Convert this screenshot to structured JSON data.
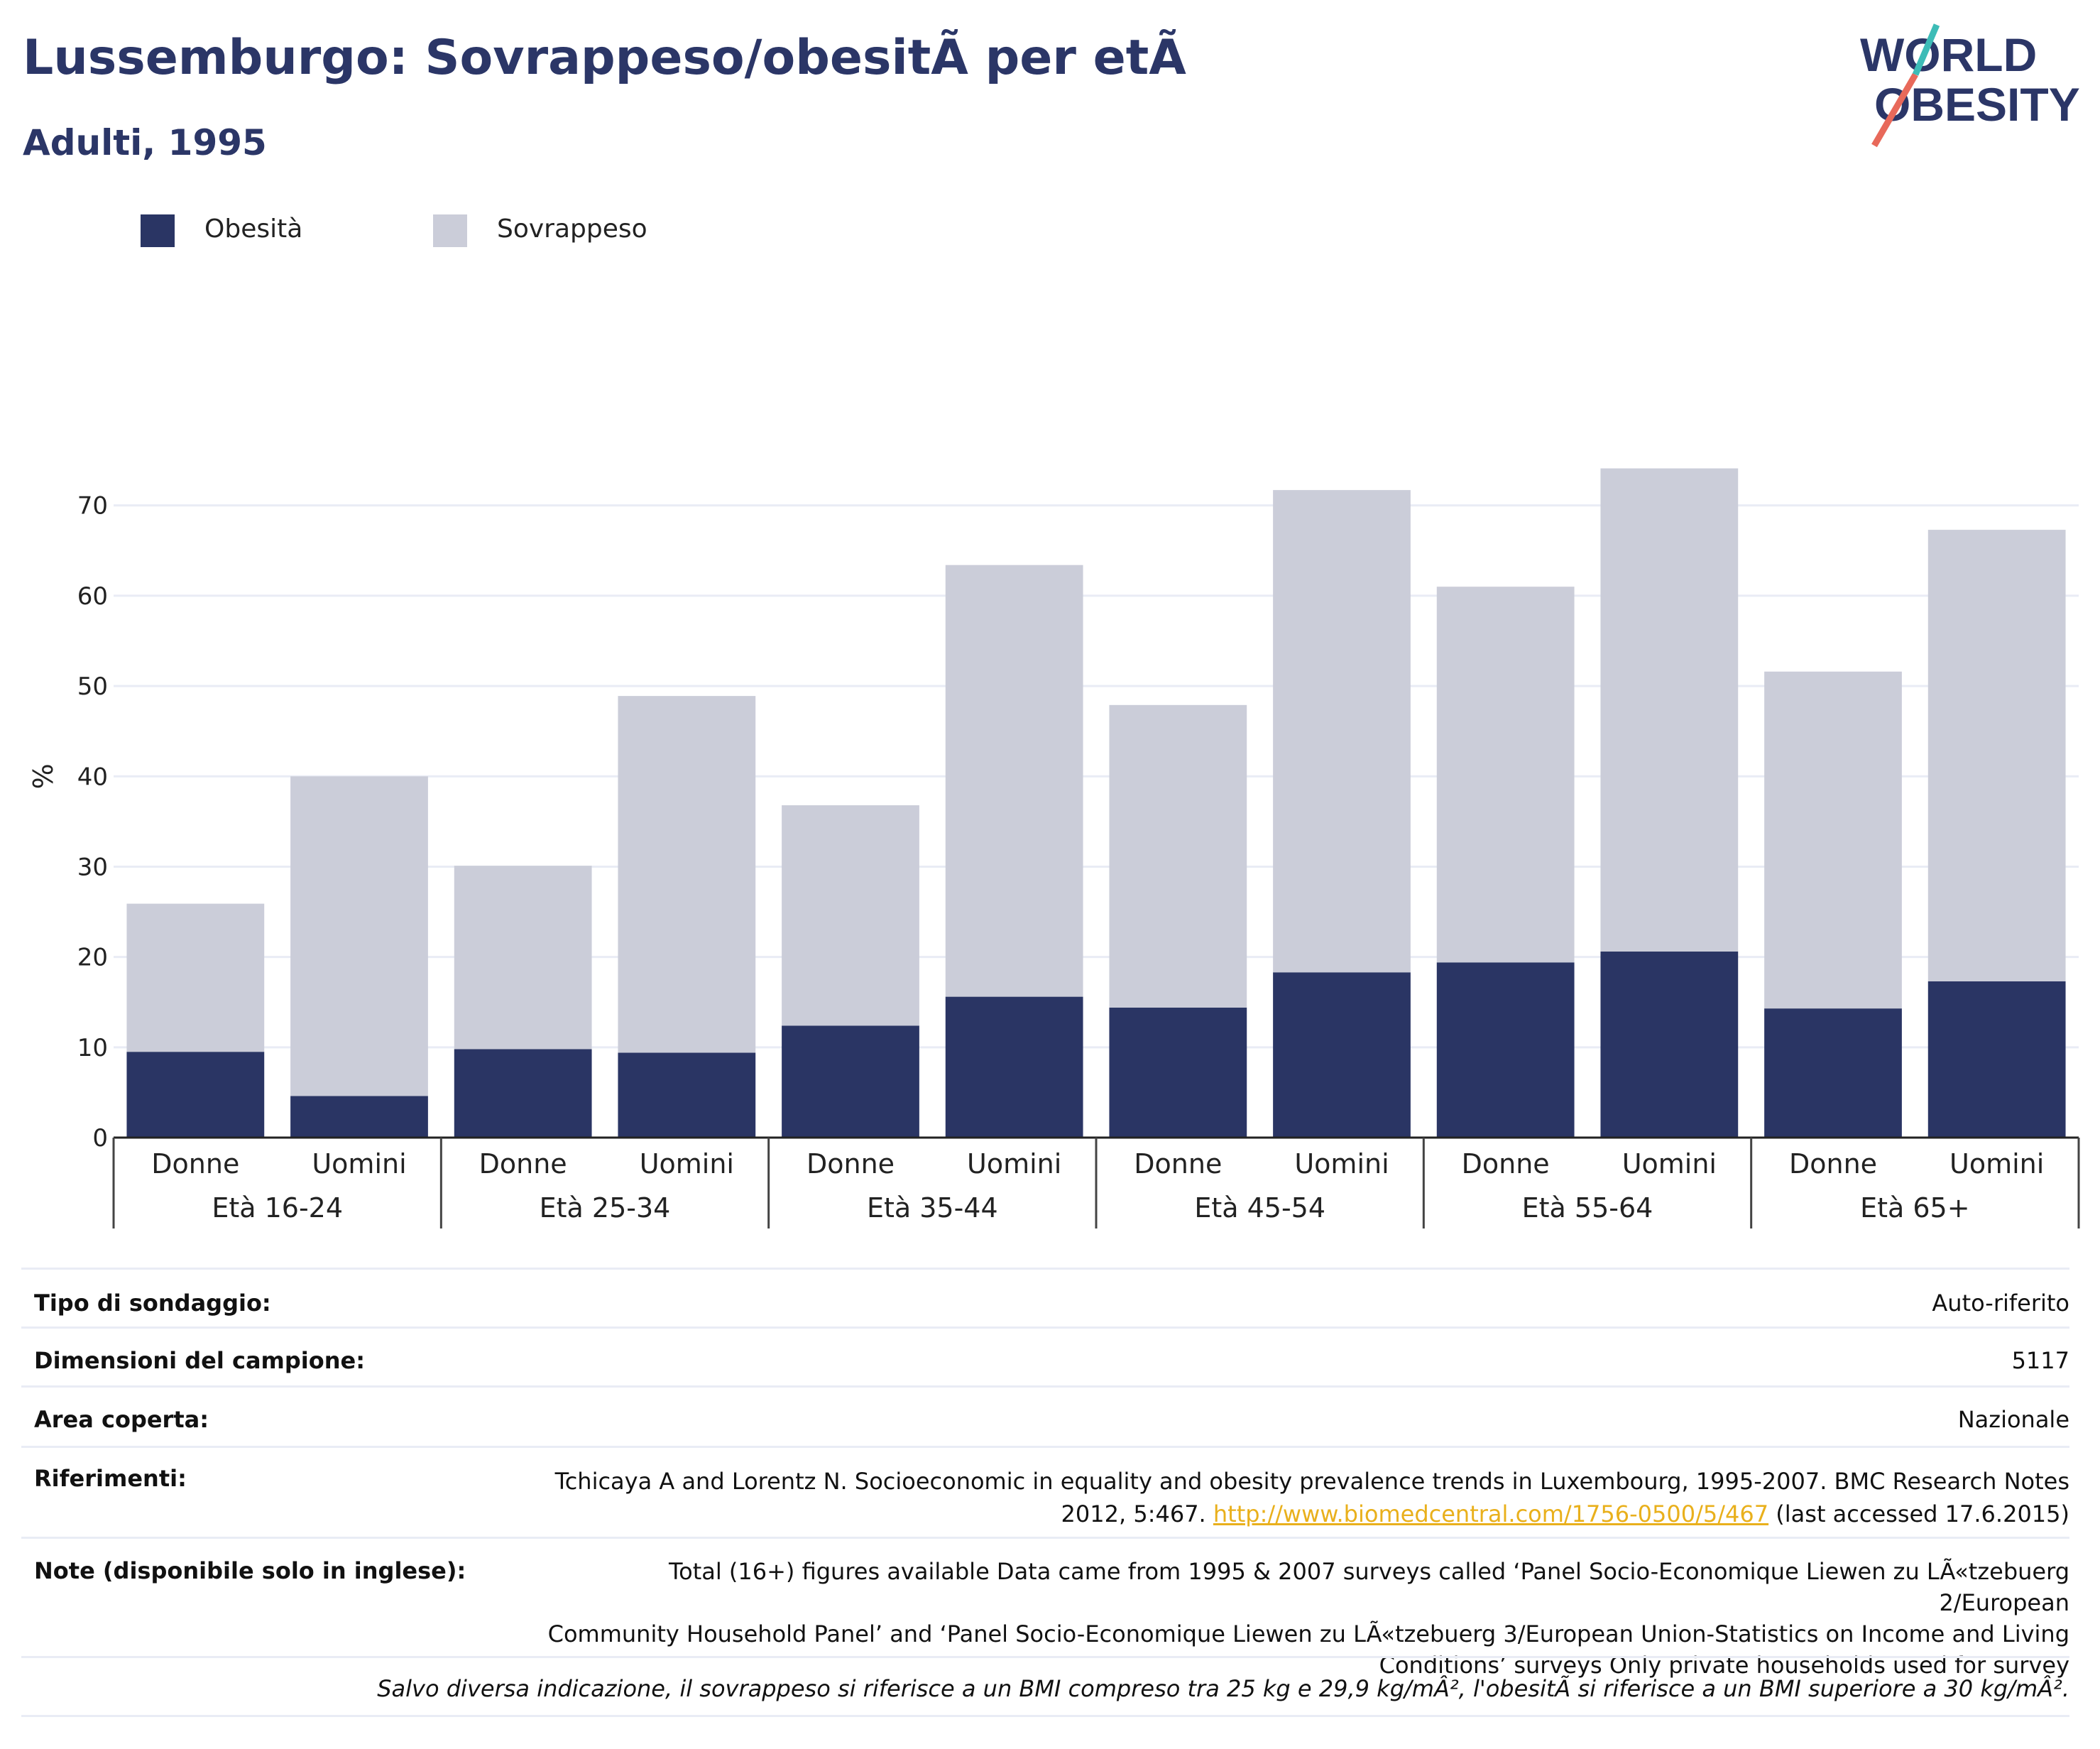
{
  "header": {
    "title": "Lussemburgo: Sovrappeso/obesitÃ  per etÃ",
    "subtitle": "Adulti, 1995"
  },
  "logo": {
    "line1": "WORLD",
    "line2": "OBESITY",
    "accent1": "#e8695a",
    "accent2": "#3dbcb7",
    "color": "#2b3667"
  },
  "legend": [
    {
      "label": "Obesità",
      "color": "#2a3564"
    },
    {
      "label": "Sovrappeso",
      "color": "#cbcdd9"
    }
  ],
  "chart_data": {
    "type": "bar",
    "stacked": true,
    "ylabel": "%",
    "ylim": [
      0,
      78
    ],
    "yticks": [
      0,
      10,
      20,
      30,
      40,
      50,
      60,
      70
    ],
    "grid": true,
    "groups": [
      "Età 16-24",
      "Età 25-34",
      "Età 35-44",
      "Età 45-54",
      "Età 55-64",
      "Età 65+"
    ],
    "subcategories": [
      "Donne",
      "Uomini"
    ],
    "series": [
      {
        "name": "Obesità",
        "color": "#2a3564",
        "values": [
          9.5,
          4.6,
          9.8,
          9.4,
          12.4,
          15.6,
          14.4,
          18.3,
          19.4,
          20.6,
          14.3,
          17.3
        ]
      },
      {
        "name": "Sovrappeso",
        "color": "#cbcdd9",
        "values": [
          16.4,
          35.4,
          20.3,
          39.5,
          24.4,
          47.8,
          33.5,
          53.4,
          41.6,
          53.5,
          37.3,
          50.0
        ]
      }
    ]
  },
  "info": {
    "rows": [
      {
        "key": "Tipo di sondaggio:",
        "value": "Auto-riferito"
      },
      {
        "key": "Dimensioni del campione:",
        "value": "5117"
      },
      {
        "key": "Area coperta:",
        "value": "Nazionale"
      }
    ],
    "ref_key": "Riferimenti:",
    "ref_text_1": "Tchicaya A and Lorentz N. Socioeconomic in equality and obesity prevalence trends in Luxembourg, 1995-2007. BMC Research Notes",
    "ref_text_2": "2012, 5:467.",
    "ref_link": "http://www.biomedcentral.com/1756-0500/5/467",
    "ref_text_3": "(last accessed 17.6.2015)",
    "notes_key": "Note (disponibile solo in inglese):",
    "notes_1": "Total (16+) figures available Data came from 1995 & 2007 surveys called ‘Panel Socio-Economique Liewen zu LÃ«tzebuerg 2/European",
    "notes_2": "Community Household Panel’ and ‘Panel Socio-Economique Liewen zu LÃ«tzebuerg 3/European Union-Statistics on Income and Living",
    "notes_3": "Conditions’ surveys Only private households used for survey",
    "footnote": "Salvo diversa indicazione, il sovrappeso si riferisce a un BMI compreso tra 25 kg e 29,9 kg/mÂ², l'obesitÃ  si riferisce a un BMI superiore a 30 kg/mÂ²."
  }
}
